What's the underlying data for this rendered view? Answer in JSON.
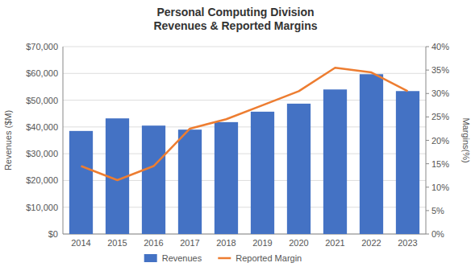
{
  "chart_data": {
    "type": "bar",
    "title": "Personal Computing Division\nRevenues & Reported Margins",
    "categories": [
      "2014",
      "2015",
      "2016",
      "2017",
      "2018",
      "2019",
      "2020",
      "2021",
      "2022",
      "2023"
    ],
    "series": [
      {
        "name": "Revenues",
        "type": "bar",
        "color": "#4472C4",
        "values": [
          38500,
          43200,
          40500,
          39000,
          41800,
          45700,
          48700,
          54000,
          59700,
          53400
        ]
      },
      {
        "name": "Reported Margin",
        "type": "line",
        "color": "#ED7D31",
        "axis": "y2",
        "values": [
          0.145,
          0.115,
          0.145,
          0.225,
          0.245,
          0.275,
          0.305,
          0.355,
          0.345,
          0.305
        ]
      }
    ],
    "ylabel": "Revenues ($M)",
    "y2label": "Margins(%)",
    "ylim": [
      0,
      70000
    ],
    "yticks": [
      {
        "value": 0,
        "label": "$0"
      },
      {
        "value": 10000,
        "label": "$10,000"
      },
      {
        "value": 20000,
        "label": "$20,000"
      },
      {
        "value": 30000,
        "label": "$30,000"
      },
      {
        "value": 40000,
        "label": "$40,000"
      },
      {
        "value": 50000,
        "label": "$50,000"
      },
      {
        "value": 60000,
        "label": "$60,000"
      },
      {
        "value": 70000,
        "label": "$70,000"
      }
    ],
    "y2lim": [
      0,
      0.4
    ],
    "y2ticks": [
      {
        "value": 0,
        "label": "0%"
      },
      {
        "value": 0.05,
        "label": "5%"
      },
      {
        "value": 0.1,
        "label": "10%"
      },
      {
        "value": 0.15,
        "label": "15%"
      },
      {
        "value": 0.2,
        "label": "20%"
      },
      {
        "value": 0.25,
        "label": "25%"
      },
      {
        "value": 0.3,
        "label": "30%"
      },
      {
        "value": 0.35,
        "label": "35%"
      },
      {
        "value": 0.4,
        "label": "40%"
      }
    ],
    "grid": true,
    "legend": "bottom"
  }
}
